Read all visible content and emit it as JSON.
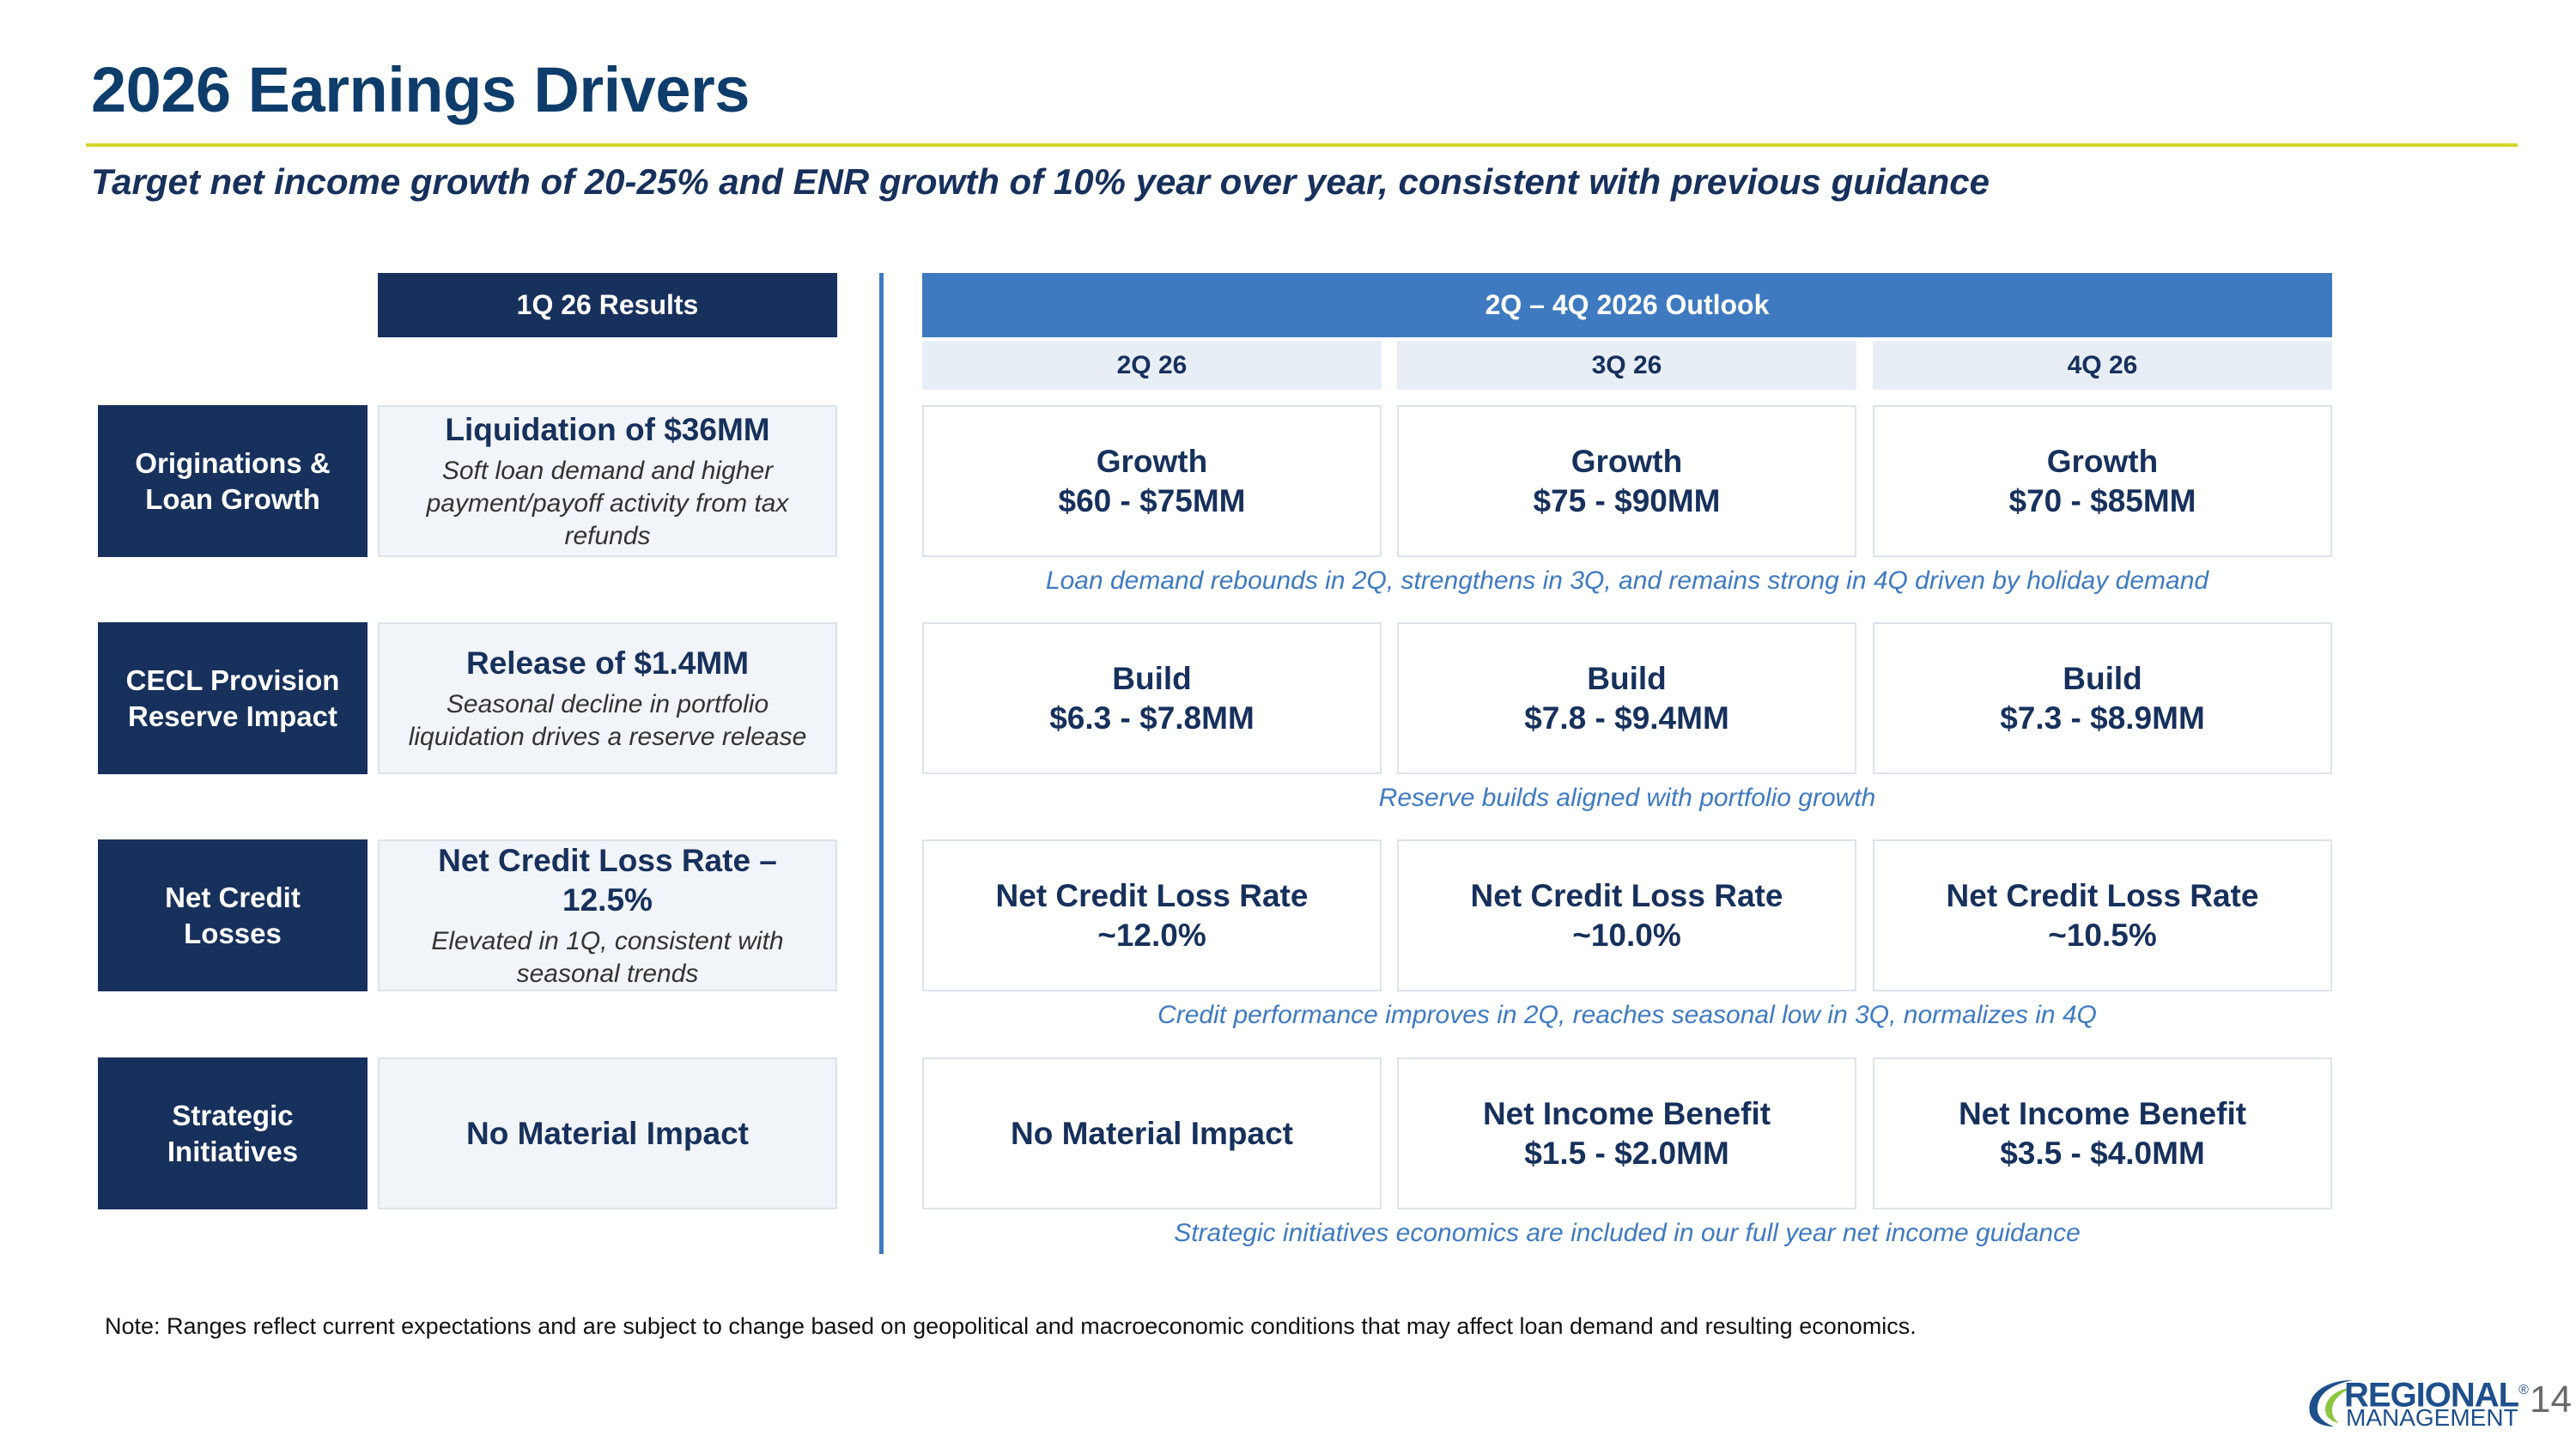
{
  "title": "2026 Earnings Drivers",
  "subtitle": "Target net income growth of 20-25% and ENR growth of 10% year over year, consistent with previous guidance",
  "headers": {
    "results": "1Q 26 Results",
    "outlook": "2Q – 4Q 2026 Outlook",
    "quarters": [
      "2Q 26",
      "3Q 26",
      "4Q 26"
    ]
  },
  "rows": [
    {
      "label": "Originations & Loan Growth",
      "results_head": "Liquidation of $36MM",
      "results_sub": "Soft loan demand and higher payment/payoff activity from tax refunds",
      "outlook": [
        {
          "line1": "Growth",
          "line2": "$60 - $75MM"
        },
        {
          "line1": "Growth",
          "line2": "$75 - $90MM"
        },
        {
          "line1": "Growth",
          "line2": "$70 - $85MM"
        }
      ],
      "note": "Loan demand rebounds in 2Q, strengthens in 3Q, and remains strong in 4Q driven by holiday demand"
    },
    {
      "label": "CECL Provision Reserve Impact",
      "results_head": "Release of $1.4MM",
      "results_sub": "Seasonal decline in portfolio liquidation drives a reserve release",
      "outlook": [
        {
          "line1": "Build",
          "line2": "$6.3 - $7.8MM"
        },
        {
          "line1": "Build",
          "line2": "$7.8 - $9.4MM"
        },
        {
          "line1": "Build",
          "line2": "$7.3 - $8.9MM"
        }
      ],
      "note": "Reserve builds aligned with portfolio growth"
    },
    {
      "label": "Net Credit Losses",
      "results_head": "Net Credit Loss Rate – 12.5%",
      "results_sub": "Elevated in 1Q, consistent with seasonal trends",
      "outlook": [
        {
          "line1": "Net Credit Loss Rate",
          "line2": "~12.0%"
        },
        {
          "line1": "Net Credit Loss Rate",
          "line2": "~10.0%"
        },
        {
          "line1": "Net Credit Loss Rate",
          "line2": "~10.5%"
        }
      ],
      "note": "Credit performance improves in 2Q, reaches seasonal low in 3Q, normalizes in 4Q"
    },
    {
      "label": "Strategic Initiatives",
      "results_head": "No Material Impact",
      "outlook": [
        {
          "line1": "No Material Impact",
          "line2": ""
        },
        {
          "line1": "Net Income Benefit",
          "line2": "$1.5 - $2.0MM"
        },
        {
          "line1": "Net Income Benefit",
          "line2": "$3.5 - $4.0MM"
        }
      ],
      "note": "Strategic initiatives economics are included in our full year net income guidance"
    }
  ],
  "footnote": "Note: Ranges reflect current expectations and are subject to change based on geopolitical and macroeconomic conditions that may affect loan demand and resulting economics.",
  "logo": {
    "line1": "REGIONAL",
    "line2": "MANAGEMENT",
    "mark": "®"
  },
  "page_number": "14",
  "colors": {
    "navy": "#17305c",
    "blue": "#3f7ac1",
    "light_blue": "#e8eef6",
    "accent_rule": "#d4d72a",
    "logo_green": "#8dc63f"
  }
}
